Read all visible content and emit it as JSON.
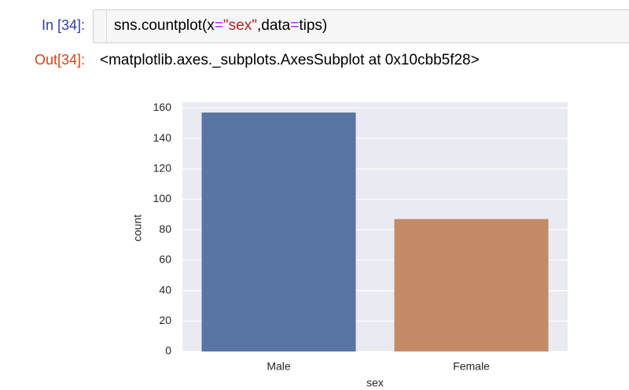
{
  "cell": {
    "input_prompt": "In [34]:",
    "code": [
      "sns.countplot(x",
      "=",
      "\"sex\"",
      ",data",
      "=",
      "tips)"
    ],
    "output_prompt": "Out[34]:",
    "output_text": "<matplotlib.axes._subplots.AxesSubplot at 0x10cbb5f28>"
  },
  "chart_data": {
    "type": "bar",
    "xlabel": "sex",
    "ylabel": "count",
    "categories": [
      "Male",
      "Female"
    ],
    "values": [
      157,
      87
    ],
    "colors": [
      "#5975a4",
      "#c38c67"
    ],
    "ylim": [
      0,
      163.8
    ],
    "yticks": [
      0,
      20,
      40,
      60,
      80,
      100,
      120,
      140,
      160
    ],
    "grid": true
  }
}
